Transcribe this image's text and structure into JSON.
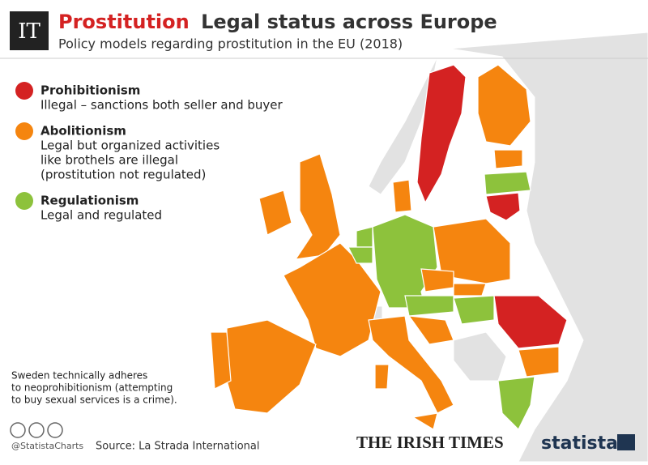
{
  "header": {
    "logo": "IT",
    "title_highlight": "Prostitution",
    "title_rest": "Legal status across Europe",
    "subtitle": "Policy models regarding prostitution in the EU (2018)"
  },
  "legend": [
    {
      "name": "Prohibitionism",
      "color": "#d42222",
      "description": [
        "Illegal – sanctions both seller and buyer"
      ]
    },
    {
      "name": "Abolitionism",
      "color": "#f5850f",
      "description": [
        "Legal but organized activities",
        "like brothels are illegal",
        "(prostitution not regulated)"
      ]
    },
    {
      "name": "Regulationism",
      "color": "#8dc23c",
      "description": [
        "Legal and regulated"
      ]
    }
  ],
  "note": [
    "Sweden technically adheres",
    "to neoprohibitionism (attempting",
    "to buy sexual services is a crime)."
  ],
  "footer": {
    "handle": "@StatistaCharts",
    "source": "Source: La Strada International",
    "publisher": "THE IRISH TIMES",
    "brand": "statista"
  }
}
